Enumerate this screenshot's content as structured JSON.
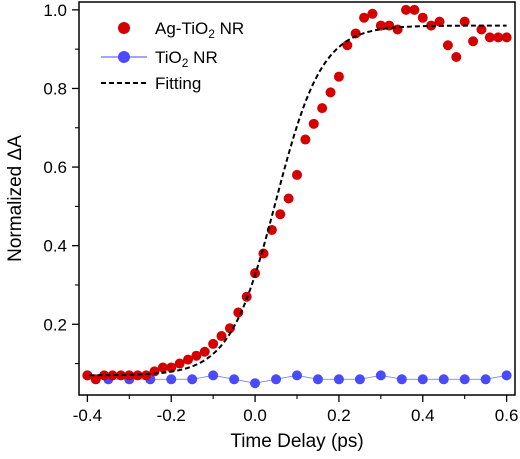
{
  "chart_data": {
    "type": "scatter",
    "xlabel": "Time Delay (ps)",
    "ylabel": "Normalized ΔA",
    "xlim": [
      -0.42,
      0.62
    ],
    "ylim": [
      0.02,
      1.02
    ],
    "xticks": [
      -0.4,
      -0.2,
      0.0,
      0.2,
      0.4,
      0.6
    ],
    "yticks": [
      0.2,
      0.4,
      0.6,
      0.8,
      1.0
    ],
    "xtick_labels": [
      "-0.4",
      "-0.2",
      "0.0",
      "0.2",
      "0.4",
      "0.6"
    ],
    "ytick_labels": [
      "0.2",
      "0.4",
      "0.6",
      "0.8",
      "1.0"
    ],
    "grid": false,
    "legend_position": "top-left",
    "legend": [
      {
        "base": "Ag-TiO",
        "sub": "2",
        "suffix": " NR"
      },
      {
        "base": "TiO",
        "sub": "2",
        "suffix": " NR"
      },
      {
        "base": "Fitting",
        "sub": "",
        "suffix": ""
      }
    ],
    "series": [
      {
        "key": "ag",
        "style": "markers",
        "color": "#d40000",
        "x": [
          -0.4,
          -0.38,
          -0.36,
          -0.34,
          -0.32,
          -0.3,
          -0.28,
          -0.26,
          -0.24,
          -0.22,
          -0.2,
          -0.18,
          -0.16,
          -0.14,
          -0.12,
          -0.1,
          -0.08,
          -0.06,
          -0.04,
          -0.02,
          0.0,
          0.02,
          0.04,
          0.06,
          0.08,
          0.1,
          0.12,
          0.14,
          0.16,
          0.18,
          0.2,
          0.22,
          0.24,
          0.26,
          0.28,
          0.3,
          0.32,
          0.34,
          0.36,
          0.38,
          0.4,
          0.42,
          0.44,
          0.46,
          0.48,
          0.5,
          0.52,
          0.54,
          0.56,
          0.58,
          0.6
        ],
        "y": [
          0.07,
          0.06,
          0.07,
          0.07,
          0.07,
          0.07,
          0.07,
          0.07,
          0.08,
          0.09,
          0.09,
          0.1,
          0.11,
          0.12,
          0.13,
          0.15,
          0.17,
          0.19,
          0.23,
          0.27,
          0.33,
          0.38,
          0.44,
          0.48,
          0.52,
          0.58,
          0.67,
          0.71,
          0.75,
          0.79,
          0.83,
          0.91,
          0.94,
          0.98,
          0.99,
          0.96,
          0.96,
          0.95,
          1.0,
          1.0,
          0.98,
          0.96,
          0.97,
          0.91,
          0.88,
          0.97,
          0.92,
          0.95,
          0.93,
          0.93,
          0.93
        ]
      },
      {
        "key": "tio2",
        "style": "markers-line",
        "color": "#4a4aff",
        "x": [
          -0.4,
          -0.35,
          -0.3,
          -0.25,
          -0.2,
          -0.15,
          -0.1,
          -0.05,
          0.0,
          0.05,
          0.1,
          0.15,
          0.2,
          0.25,
          0.3,
          0.35,
          0.4,
          0.45,
          0.5,
          0.55,
          0.6
        ],
        "y": [
          0.07,
          0.06,
          0.06,
          0.06,
          0.06,
          0.06,
          0.07,
          0.06,
          0.05,
          0.06,
          0.07,
          0.06,
          0.06,
          0.06,
          0.07,
          0.06,
          0.06,
          0.06,
          0.06,
          0.06,
          0.07
        ]
      },
      {
        "key": "fit",
        "style": "dashed-line",
        "color": "#000000",
        "model": {
          "type": "sigmoid",
          "baseline": 0.07,
          "amplitude": 0.89,
          "center": 0.05,
          "width": 0.055
        }
      }
    ]
  }
}
